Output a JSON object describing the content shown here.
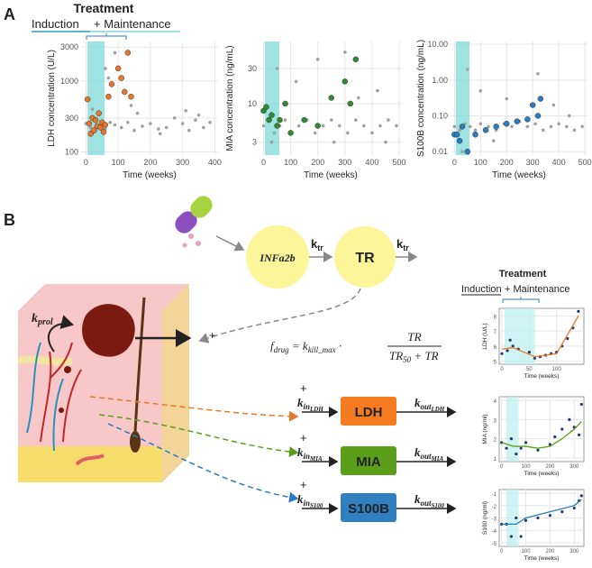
{
  "panel_labels": {
    "a": "A",
    "b": "B"
  },
  "header_a": {
    "title": "Treatment",
    "induction": "Induction",
    "rest": "+ Maintenance"
  },
  "header_b": {
    "title": "Treatment",
    "induction": "Induction",
    "rest": "+ Maintenance"
  },
  "diagram": {
    "drug": "INFa2b",
    "tr": "TR",
    "ktr_1": {
      "main": "k",
      "sub": "tr"
    },
    "ktr_2": {
      "main": "k",
      "sub": "tr"
    },
    "kprol": {
      "main": "k",
      "sub": "prol"
    },
    "plus": "+",
    "formula": {
      "f": "f",
      "f_sub": "drug",
      "eq": " = k",
      "k_sub": "kill_max",
      "dot": " · ",
      "num": "TR",
      "den": "TR",
      "den_sub": "50",
      "den_rest": " + TR"
    },
    "markers": [
      {
        "box": "LDH",
        "plus": "+",
        "kin": "k",
        "kin_sub": "in",
        "kin_subsub": "LDH",
        "kout": "k",
        "kout_sub": "out",
        "kout_subsub": "LDH"
      },
      {
        "box": "MIA",
        "plus": "+",
        "kin": "k",
        "kin_sub": "in",
        "kin_subsub": "MIA",
        "kout": "k",
        "kout_sub": "out",
        "kout_subsub": "MIA"
      },
      {
        "box": "S100B",
        "plus": "+",
        "kin": "k",
        "kin_sub": "in",
        "kin_subsub": "S100",
        "kout": "k",
        "kout_sub": "out",
        "kout_subsub": "S100"
      }
    ]
  },
  "chart_data": [
    {
      "type": "scatter",
      "xlabel": "Time (weeks)",
      "ylabel": "LDH concentration (U/L)",
      "log_y": true,
      "grid": true,
      "xlim": [
        -15,
        410
      ],
      "xticks": [
        0,
        100,
        200,
        300,
        400
      ],
      "ylim": [
        90,
        3600
      ],
      "yticks": [
        100,
        300,
        1000,
        3000
      ],
      "shade": [
        5,
        58
      ],
      "shade_color": "#7fd8d8",
      "series": [
        {
          "mode": "points",
          "color": "#a0a0a0",
          "x": [
            0,
            15,
            30,
            45,
            60,
            75,
            90,
            110,
            130,
            150,
            175,
            200,
            225,
            250,
            275,
            300,
            320,
            340,
            365,
            385,
            60,
            90,
            120,
            140,
            20,
            70,
            160,
            230,
            310,
            350
          ],
          "values": [
            250,
            220,
            200,
            230,
            210,
            260,
            240,
            220,
            260,
            200,
            230,
            250,
            210,
            220,
            300,
            250,
            200,
            280,
            220,
            260,
            1500,
            2500,
            700,
            450,
            400,
            1100,
            350,
            180,
            380,
            330
          ]
        },
        {
          "mode": "points",
          "color": "#e8772a",
          "x": [
            5,
            10,
            15,
            20,
            25,
            30,
            35,
            40,
            45,
            50,
            55,
            60,
            70,
            80,
            100,
            110,
            120,
            130,
            140
          ],
          "values": [
            550,
            250,
            180,
            300,
            200,
            280,
            230,
            350,
            220,
            260,
            190,
            240,
            600,
            900,
            1500,
            1100,
            700,
            2500,
            600
          ]
        }
      ]
    },
    {
      "type": "scatter",
      "xlabel": "Time (weeks)",
      "ylabel": "MIA concentration (ng/mL)",
      "log_y": true,
      "grid": true,
      "xlim": [
        -15,
        510
      ],
      "xticks": [
        0,
        100,
        200,
        300,
        400,
        500
      ],
      "ylim": [
        2,
        70
      ],
      "yticks": [
        3,
        10,
        30
      ],
      "shade": [
        5,
        58
      ],
      "shade_color": "#7fd8d8",
      "series": [
        {
          "mode": "points",
          "color": "#a0a0a0",
          "x": [
            0,
            20,
            40,
            60,
            80,
            100,
            130,
            160,
            190,
            220,
            250,
            280,
            310,
            340,
            370,
            400,
            430,
            460,
            490,
            50,
            120,
            200,
            300,
            420,
            30,
            260,
            350,
            450
          ],
          "values": [
            5,
            6,
            4,
            5,
            6,
            4,
            5,
            6,
            4,
            5,
            6,
            5,
            4,
            6,
            5,
            4,
            5,
            6,
            5,
            30,
            20,
            40,
            50,
            15,
            3,
            3,
            12,
            3
          ]
        },
        {
          "mode": "points",
          "color": "#2e8b2e",
          "x": [
            0,
            10,
            20,
            30,
            50,
            60,
            80,
            100,
            150,
            200,
            250,
            300,
            320,
            340
          ],
          "values": [
            8,
            9,
            6,
            7,
            5,
            6,
            10,
            4,
            6,
            5,
            12,
            20,
            10,
            40
          ]
        }
      ]
    },
    {
      "type": "scatter",
      "xlabel": "Time (weeks)",
      "ylabel": "S100B concentration (ng/mL)",
      "log_y": true,
      "grid": true,
      "xlim": [
        -15,
        510
      ],
      "xticks": [
        0,
        100,
        200,
        300,
        400,
        500
      ],
      "ylim": [
        0.008,
        12
      ],
      "yticks": [
        {
          "value": 0.01,
          "label": "0.01"
        },
        {
          "value": 0.1,
          "label": "0.10"
        },
        {
          "value": 1,
          "label": "1.00"
        },
        {
          "value": 10,
          "label": "10.00"
        }
      ],
      "shade": [
        5,
        58
      ],
      "shade_color": "#7fd8d8",
      "series": [
        {
          "mode": "points",
          "color": "#a0a0a0",
          "x": [
            0,
            20,
            40,
            60,
            80,
            100,
            130,
            160,
            190,
            220,
            250,
            280,
            310,
            340,
            370,
            400,
            430,
            460,
            490,
            50,
            100,
            200,
            320,
            30,
            150,
            380,
            440
          ],
          "values": [
            0.05,
            0.04,
            0.06,
            0.05,
            0.04,
            0.06,
            0.05,
            0.04,
            0.06,
            0.05,
            0.07,
            0.05,
            0.06,
            0.04,
            0.05,
            0.06,
            0.05,
            0.04,
            0.05,
            2,
            0.5,
            0.3,
            1.5,
            0.01,
            0.02,
            0.2,
            0.1
          ]
        },
        {
          "mode": "points",
          "color": "#2a7bbf",
          "x": [
            0,
            10,
            20,
            30,
            50,
            80,
            120,
            160,
            200,
            240,
            280,
            300,
            320,
            330
          ],
          "values": [
            0.03,
            0.03,
            0.02,
            0.05,
            0.01,
            0.03,
            0.04,
            0.05,
            0.06,
            0.07,
            0.08,
            0.2,
            0.1,
            0.3
          ]
        }
      ]
    },
    {
      "type": "scatter",
      "xlabel": "Time (weeks)",
      "ylabel": "LDH (U/L)",
      "log_y": false,
      "grid": true,
      "xlim": [
        -5,
        150
      ],
      "xticks": [
        0,
        50,
        100
      ],
      "ylim": [
        4.8,
        8.5
      ],
      "yticks": [
        5,
        6,
        7,
        8
      ],
      "shade": [
        5,
        60
      ],
      "shade_color": "#bfeeee",
      "series": [
        {
          "mode": "points",
          "color": "#1f3a6e",
          "x": [
            0,
            10,
            15,
            20,
            30,
            50,
            60,
            70,
            80,
            90,
            100,
            110,
            120,
            130,
            140
          ],
          "values": [
            5.5,
            5.7,
            6.4,
            6.0,
            5.8,
            5.6,
            5.2,
            5.3,
            5.4,
            5.5,
            5.6,
            6.0,
            6.5,
            7.2,
            8.3
          ]
        },
        {
          "mode": "line",
          "color": "#e8772a",
          "x": [
            0,
            20,
            60,
            100,
            140
          ],
          "values": [
            5.8,
            5.9,
            5.3,
            5.5,
            8.0
          ]
        }
      ]
    },
    {
      "type": "scatter",
      "xlabel": "Time (weeks)",
      "ylabel": "MIA (ng/ml)",
      "log_y": false,
      "grid": true,
      "xlim": [
        -10,
        340
      ],
      "xticks": [
        0,
        100,
        200,
        300
      ],
      "ylim": [
        0.8,
        4.2
      ],
      "yticks": [
        1,
        2,
        3,
        4
      ],
      "shade": [
        20,
        70
      ],
      "shade_color": "#bfeeee",
      "series": [
        {
          "mode": "points",
          "color": "#1f3a6e",
          "x": [
            0,
            20,
            40,
            60,
            80,
            100,
            150,
            200,
            220,
            250,
            280,
            300,
            320,
            330
          ],
          "values": [
            1.8,
            1.5,
            2.0,
            1.2,
            1.5,
            1.8,
            1.4,
            1.7,
            2.1,
            2.5,
            3.0,
            2.6,
            2.2,
            3.8
          ]
        },
        {
          "mode": "line",
          "color": "#5a9e1a",
          "x": [
            0,
            50,
            100,
            150,
            200,
            250,
            300,
            330
          ],
          "values": [
            1.8,
            1.6,
            1.6,
            1.5,
            1.6,
            2.0,
            2.5,
            2.9
          ]
        }
      ]
    },
    {
      "type": "scatter",
      "xlabel": "Time (weeks)",
      "ylabel": "S100 (ng/ml)",
      "log_y": false,
      "grid": true,
      "xlim": [
        -10,
        340
      ],
      "xticks": [
        0,
        100,
        200,
        300
      ],
      "ylim": [
        -5.3,
        -0.7
      ],
      "yticks": [
        -1,
        -2,
        -3,
        -4,
        -5
      ],
      "shade": [
        20,
        70
      ],
      "shade_color": "#bfeeee",
      "series": [
        {
          "mode": "points",
          "color": "#1f3a6e",
          "x": [
            0,
            20,
            40,
            60,
            80,
            100,
            150,
            200,
            250,
            300,
            320,
            330
          ],
          "values": [
            -3.5,
            -3.5,
            -4.5,
            -3.0,
            -4.5,
            -3.2,
            -3.0,
            -2.8,
            -2.5,
            -2.2,
            -1.6,
            -1.2
          ]
        },
        {
          "mode": "line",
          "color": "#2a7bbf",
          "x": [
            0,
            60,
            100,
            200,
            300,
            330
          ],
          "values": [
            -3.5,
            -3.5,
            -3.0,
            -2.5,
            -2.0,
            -1.5
          ]
        }
      ]
    }
  ]
}
